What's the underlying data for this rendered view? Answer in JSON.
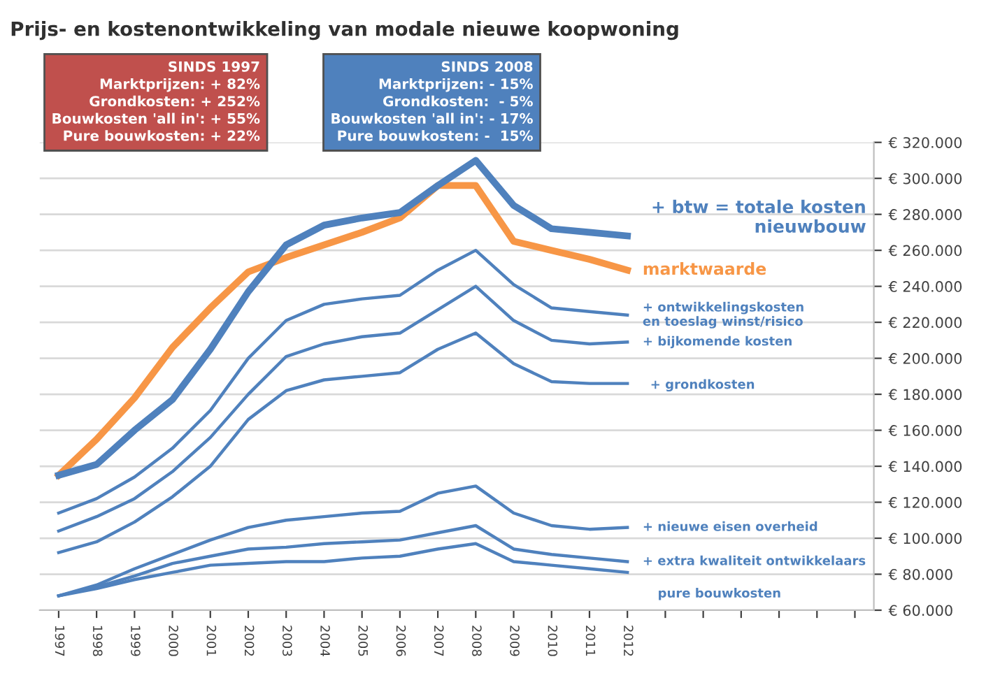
{
  "chart_data": {
    "type": "line",
    "title": "Prijs- en kostenontwikkeling van modale nieuwe koopwoning",
    "categories": [
      "1997",
      "1998",
      "1999",
      "2000",
      "2001",
      "2002",
      "2003",
      "2004",
      "2005",
      "2006",
      "2007",
      "2008",
      "2009",
      "2010",
      "2011",
      "2012",
      null,
      null,
      null,
      null,
      null,
      null
    ],
    "series": [
      {
        "name": "+ btw = totale kosten\nnieuwbouw",
        "color": "#4f81bd",
        "values": [
          135000,
          141000,
          160000,
          177000,
          205000,
          237000,
          263000,
          274000,
          278000,
          281000,
          296000,
          310000,
          285000,
          272000,
          270000,
          268000,
          null,
          null,
          null,
          null,
          null,
          null
        ]
      },
      {
        "name": "marktwaarde",
        "color": "#f79646",
        "values": [
          135000,
          155000,
          178000,
          206000,
          228000,
          248000,
          256000,
          263000,
          270000,
          278000,
          296000,
          296000,
          265000,
          260000,
          255000,
          249000,
          null,
          null,
          null,
          null,
          null,
          null
        ]
      },
      {
        "name": "+ ontwikkelingskosten\nen toeslag winst/risico",
        "color": "#4f81bd",
        "values": [
          114000,
          122000,
          134000,
          150000,
          171000,
          200000,
          221000,
          230000,
          233000,
          235000,
          249000,
          260000,
          241000,
          228000,
          226000,
          224000,
          null,
          null,
          null,
          null,
          null,
          null
        ]
      },
      {
        "name": "+ bijkomende kosten",
        "color": "#4f81bd",
        "values": [
          104000,
          112000,
          122000,
          137000,
          156000,
          180000,
          201000,
          208000,
          212000,
          214000,
          227000,
          240000,
          221000,
          210000,
          208000,
          209000,
          null,
          null,
          null,
          null,
          null,
          null
        ]
      },
      {
        "name": "+ grondkosten",
        "color": "#4f81bd",
        "values": [
          92000,
          98000,
          109000,
          123000,
          140000,
          166000,
          182000,
          188000,
          190000,
          192000,
          205000,
          214000,
          197000,
          187000,
          186000,
          186000,
          null,
          null,
          null,
          null,
          null,
          null
        ]
      },
      {
        "name": "+ nieuwe eisen overheid",
        "color": "#4f81bd",
        "values": [
          68000,
          74000,
          83000,
          91000,
          99000,
          106000,
          110000,
          112000,
          114000,
          115000,
          125000,
          129000,
          114000,
          107000,
          105000,
          106000,
          null,
          null,
          null,
          null,
          null,
          null
        ]
      },
      {
        "name": "+ extra kwaliteit ontwikkelaars",
        "color": "#4f81bd",
        "values": [
          68000,
          73000,
          79000,
          86000,
          90000,
          94000,
          95000,
          97000,
          98000,
          99000,
          103000,
          107000,
          94000,
          91000,
          89000,
          87000,
          null,
          null,
          null,
          null,
          null,
          null
        ]
      },
      {
        "name": "pure bouwkosten",
        "color": "#4f81bd",
        "values": [
          68000,
          72000,
          77000,
          81000,
          85000,
          86000,
          87000,
          87000,
          89000,
          90000,
          94000,
          97000,
          87000,
          85000,
          83000,
          81000,
          null,
          null,
          null,
          null,
          null,
          null
        ]
      }
    ],
    "ylim": [
      60000,
      320000
    ],
    "yticks": [
      {
        "value": 60000,
        "label": "€ 60.000"
      },
      {
        "value": 80000,
        "label": "€ 80.000"
      },
      {
        "value": 100000,
        "label": "€ 100.000"
      },
      {
        "value": 120000,
        "label": "€ 120.000"
      },
      {
        "value": 140000,
        "label": "€ 140.000"
      },
      {
        "value": 160000,
        "label": "€ 160.000"
      },
      {
        "value": 180000,
        "label": "€ 180.000"
      },
      {
        "value": 200000,
        "label": "€ 200.000"
      },
      {
        "value": 220000,
        "label": "€ 220.000"
      },
      {
        "value": 240000,
        "label": "€ 240.000"
      },
      {
        "value": 260000,
        "label": "€ 260.000"
      },
      {
        "value": 280000,
        "label": "€ 280.000"
      },
      {
        "value": 300000,
        "label": "€ 300.000"
      },
      {
        "value": 320000,
        "label": "€ 320.000"
      }
    ],
    "grid": "y",
    "legend": false,
    "marker": "none",
    "line_style": "solid",
    "annotations": [
      "SINDS 1997\nMarktprijzen: + 82%\nGrondkosten: + 252%\nBouwkosten 'all in': + 55%\nPure bouwkosten: + 22%",
      "SINDS 2008\nMarktprijzen: - 15%\nGrondkosten:  - 5%\nBouwkosten 'all in': - 17%\nPure bouwkosten: -  15%"
    ]
  }
}
